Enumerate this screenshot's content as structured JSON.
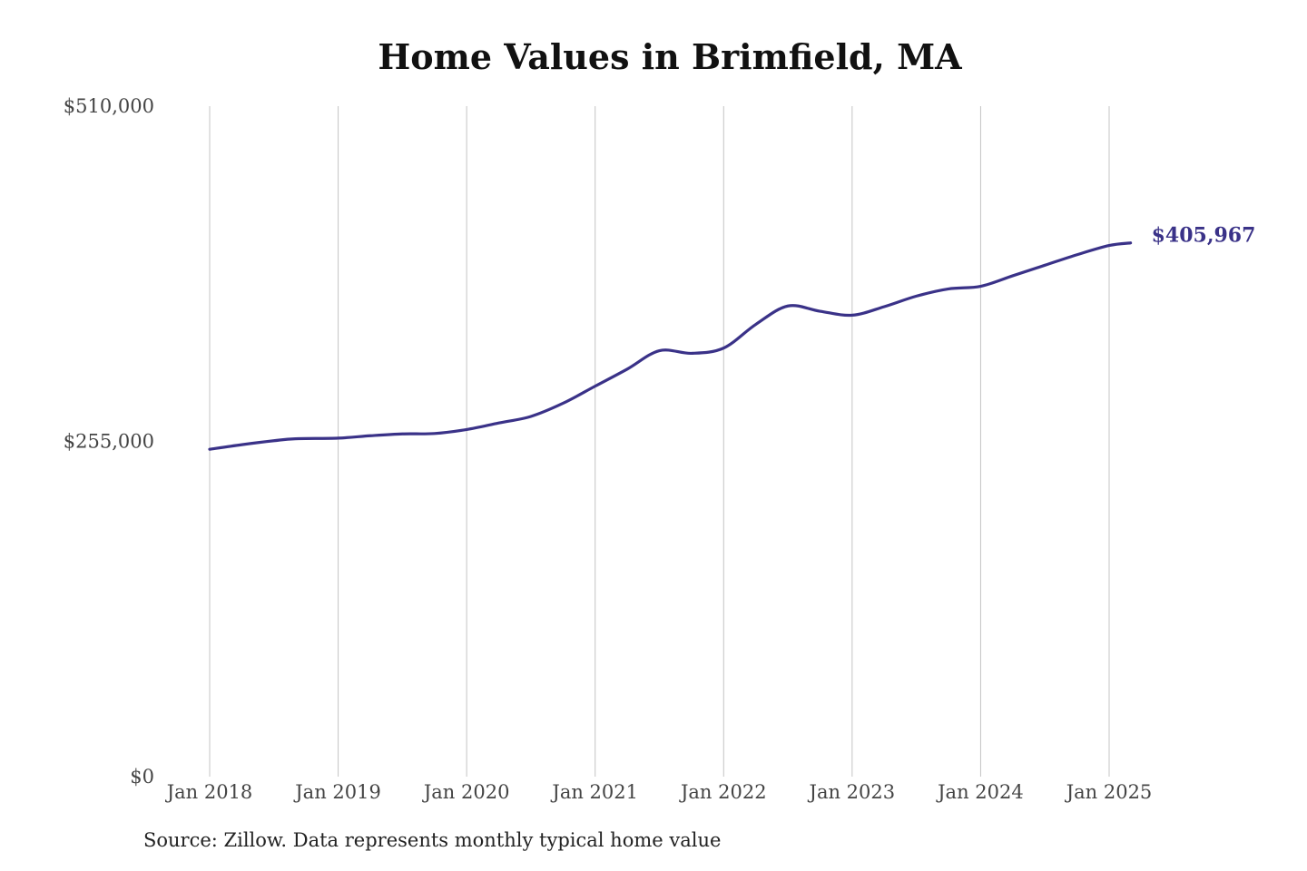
{
  "chart_data": {
    "type": "line",
    "title": "Home Values in Brimfield, MA",
    "source": "Source: Zillow. Data represents monthly typical home value",
    "ylim": [
      0,
      510000
    ],
    "y_ticks": [
      {
        "value": 0,
        "label": "$0"
      },
      {
        "value": 255000,
        "label": "$255,000"
      },
      {
        "value": 510000,
        "label": "$510,000"
      }
    ],
    "x_ticks": [
      {
        "value": "2018-01",
        "label": "Jan 2018"
      },
      {
        "value": "2019-01",
        "label": "Jan 2019"
      },
      {
        "value": "2020-01",
        "label": "Jan 2020"
      },
      {
        "value": "2021-01",
        "label": "Jan 2021"
      },
      {
        "value": "2022-01",
        "label": "Jan 2022"
      },
      {
        "value": "2023-01",
        "label": "Jan 2023"
      },
      {
        "value": "2024-01",
        "label": "Jan 2024"
      },
      {
        "value": "2025-01",
        "label": "Jan 2025"
      }
    ],
    "grid": "vertical",
    "series": [
      {
        "color": "#3a3288",
        "points": [
          {
            "x": "2018-01",
            "y": 249000
          },
          {
            "x": "2018-04",
            "y": 252500
          },
          {
            "x": "2018-07",
            "y": 255500
          },
          {
            "x": "2018-09",
            "y": 257000
          },
          {
            "x": "2019-01",
            "y": 257500
          },
          {
            "x": "2019-04",
            "y": 259300
          },
          {
            "x": "2019-07",
            "y": 260700
          },
          {
            "x": "2019-10",
            "y": 261000
          },
          {
            "x": "2020-01",
            "y": 264000
          },
          {
            "x": "2020-04",
            "y": 269000
          },
          {
            "x": "2020-07",
            "y": 274000
          },
          {
            "x": "2020-10",
            "y": 284000
          },
          {
            "x": "2021-01",
            "y": 297000
          },
          {
            "x": "2021-04",
            "y": 310000
          },
          {
            "x": "2021-07",
            "y": 324000
          },
          {
            "x": "2021-10",
            "y": 322000
          },
          {
            "x": "2022-01",
            "y": 326000
          },
          {
            "x": "2022-04",
            "y": 344000
          },
          {
            "x": "2022-07",
            "y": 358000
          },
          {
            "x": "2022-10",
            "y": 354000
          },
          {
            "x": "2023-01",
            "y": 351000
          },
          {
            "x": "2023-04",
            "y": 357500
          },
          {
            "x": "2023-07",
            "y": 365500
          },
          {
            "x": "2023-10",
            "y": 371000
          },
          {
            "x": "2024-01",
            "y": 373000
          },
          {
            "x": "2024-04",
            "y": 381000
          },
          {
            "x": "2024-07",
            "y": 389000
          },
          {
            "x": "2024-10",
            "y": 397000
          },
          {
            "x": "2025-01",
            "y": 404000
          },
          {
            "x": "2025-03",
            "y": 405967
          }
        ]
      }
    ],
    "end_label": "$405,967"
  }
}
